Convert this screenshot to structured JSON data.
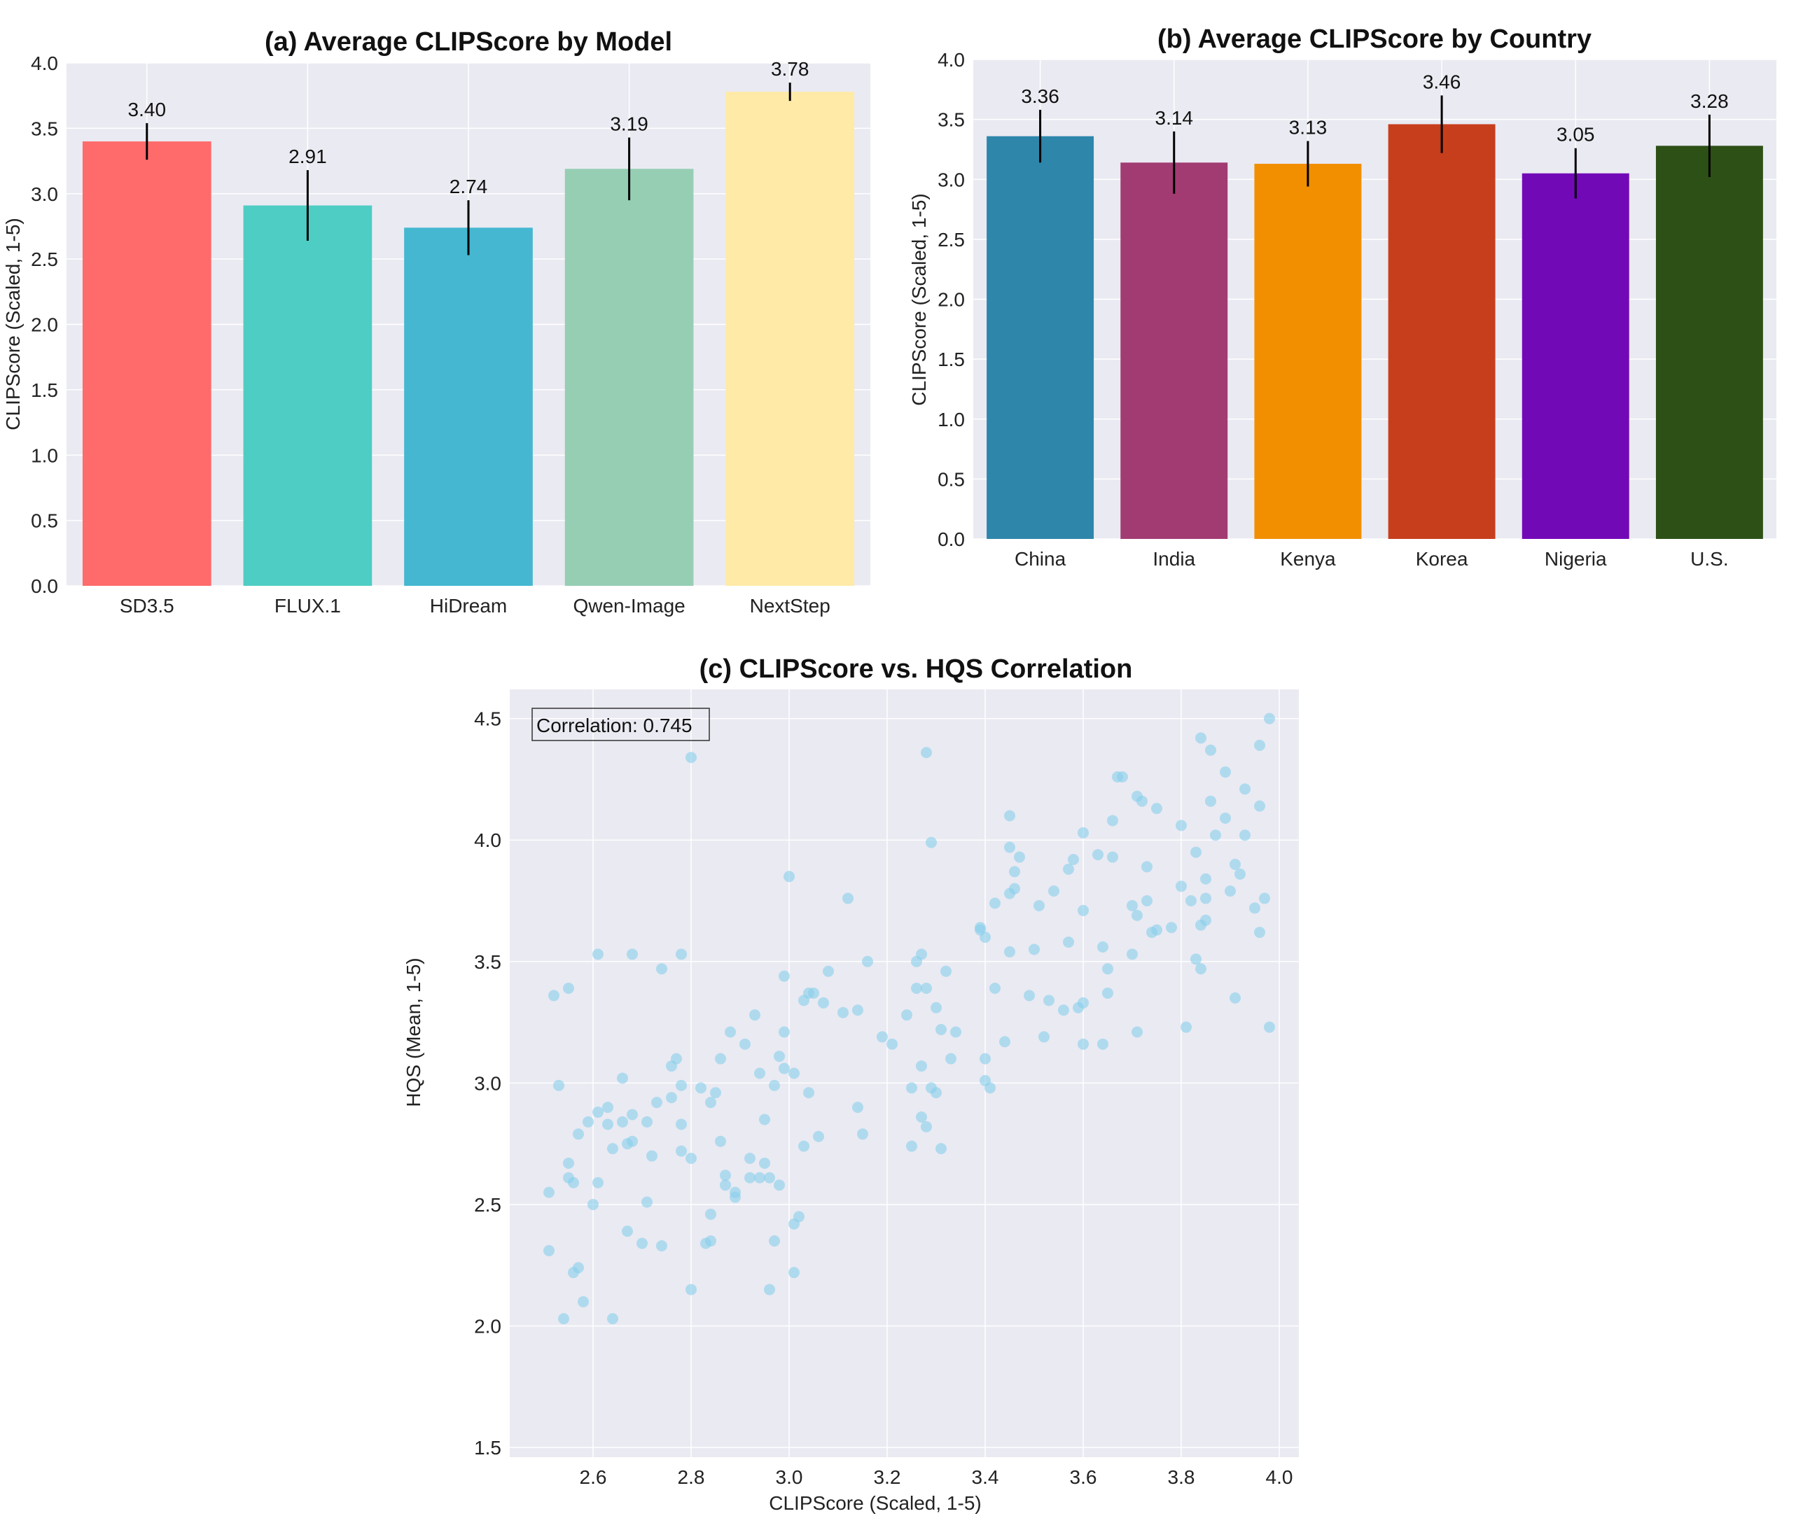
{
  "chart_data": [
    {
      "id": "a",
      "type": "bar",
      "title": "(a) Average CLIPScore by Model",
      "xlabel": "",
      "ylabel": "CLIPScore (Scaled, 1-5)",
      "ylim": [
        0,
        4.0
      ],
      "yticks": [
        "0.0",
        "0.5",
        "1.0",
        "1.5",
        "2.0",
        "2.5",
        "3.0",
        "3.5",
        "4.0"
      ],
      "categories": [
        "SD3.5",
        "FLUX.1",
        "HiDream",
        "Qwen-Image",
        "NextStep"
      ],
      "values": [
        3.4,
        2.91,
        2.74,
        3.19,
        3.78
      ],
      "value_labels": [
        "3.40",
        "2.91",
        "2.74",
        "3.19",
        "3.78"
      ],
      "errors": [
        0.14,
        0.27,
        0.21,
        0.24,
        0.07
      ],
      "colors": [
        "#ff6b6b",
        "#4ecdc4",
        "#45b7d1",
        "#96ceb4",
        "#ffeaa7"
      ],
      "grid": true
    },
    {
      "id": "b",
      "type": "bar",
      "title": "(b) Average CLIPScore by Country",
      "xlabel": "",
      "ylabel": "CLIPScore (Scaled, 1-5)",
      "ylim": [
        0,
        4.0
      ],
      "yticks": [
        "0.0",
        "0.5",
        "1.0",
        "1.5",
        "2.0",
        "2.5",
        "3.0",
        "3.5",
        "4.0"
      ],
      "categories": [
        "China",
        "India",
        "Kenya",
        "Korea",
        "Nigeria",
        "U.S."
      ],
      "values": [
        3.36,
        3.14,
        3.13,
        3.46,
        3.05,
        3.28
      ],
      "value_labels": [
        "3.36",
        "3.14",
        "3.13",
        "3.46",
        "3.05",
        "3.28"
      ],
      "errors": [
        0.22,
        0.26,
        0.19,
        0.24,
        0.21,
        0.26
      ],
      "colors": [
        "#2e86ab",
        "#a23b72",
        "#f18f01",
        "#c73e1d",
        "#7209b7",
        "#2d5016"
      ],
      "grid": true
    },
    {
      "id": "c",
      "type": "scatter",
      "title": "(c) CLIPScore vs. HQS Correlation",
      "xlabel": "CLIPScore (Scaled, 1-5)",
      "ylabel": "HQS (Mean, 1-5)",
      "xlim": [
        2.43,
        4.04
      ],
      "ylim": [
        1.46,
        4.62
      ],
      "xticks": [
        "2.6",
        "2.8",
        "3.0",
        "3.2",
        "3.4",
        "3.6",
        "3.8",
        "4.0"
      ],
      "yticks": [
        "1.5",
        "2.0",
        "2.5",
        "3.0",
        "3.5",
        "4.0",
        "4.5"
      ],
      "annotation": "Correlation: 0.745",
      "point_color": "#87ceeb",
      "grid": true,
      "points": [
        [
          2.51,
          2.55
        ],
        [
          2.51,
          2.31
        ],
        [
          2.52,
          3.36
        ],
        [
          2.53,
          2.99
        ],
        [
          2.54,
          2.03
        ],
        [
          2.55,
          3.39
        ],
        [
          2.55,
          2.61
        ],
        [
          2.55,
          2.67
        ],
        [
          2.56,
          2.59
        ],
        [
          2.56,
          2.22
        ],
        [
          2.57,
          2.79
        ],
        [
          2.57,
          2.24
        ],
        [
          2.58,
          2.1
        ],
        [
          2.59,
          2.84
        ],
        [
          2.6,
          2.5
        ],
        [
          2.61,
          2.88
        ],
        [
          2.61,
          2.59
        ],
        [
          2.61,
          3.53
        ],
        [
          2.63,
          2.83
        ],
        [
          2.63,
          2.9
        ],
        [
          2.64,
          2.73
        ],
        [
          2.64,
          2.03
        ],
        [
          2.66,
          3.02
        ],
        [
          2.66,
          2.84
        ],
        [
          2.67,
          2.39
        ],
        [
          2.67,
          2.75
        ],
        [
          2.68,
          3.53
        ],
        [
          2.68,
          2.76
        ],
        [
          2.68,
          2.87
        ],
        [
          2.7,
          2.34
        ],
        [
          2.71,
          2.84
        ],
        [
          2.71,
          2.51
        ],
        [
          2.72,
          2.7
        ],
        [
          2.73,
          2.92
        ],
        [
          2.74,
          3.47
        ],
        [
          2.74,
          2.33
        ],
        [
          2.76,
          2.94
        ],
        [
          2.76,
          3.07
        ],
        [
          2.77,
          3.1
        ],
        [
          2.78,
          2.83
        ],
        [
          2.78,
          3.53
        ],
        [
          2.78,
          2.99
        ],
        [
          2.78,
          2.72
        ],
        [
          2.8,
          4.34
        ],
        [
          2.8,
          2.69
        ],
        [
          2.8,
          2.15
        ],
        [
          2.82,
          2.98
        ],
        [
          2.83,
          2.34
        ],
        [
          2.84,
          2.35
        ],
        [
          2.84,
          2.92
        ],
        [
          2.84,
          2.46
        ],
        [
          2.85,
          2.96
        ],
        [
          2.86,
          2.76
        ],
        [
          2.86,
          3.1
        ],
        [
          2.87,
          2.62
        ],
        [
          2.87,
          2.58
        ],
        [
          2.88,
          3.21
        ],
        [
          2.89,
          2.55
        ],
        [
          2.89,
          2.53
        ],
        [
          2.91,
          3.16
        ],
        [
          2.92,
          2.69
        ],
        [
          2.92,
          2.61
        ],
        [
          2.93,
          3.28
        ],
        [
          2.94,
          2.61
        ],
        [
          2.94,
          3.04
        ],
        [
          2.95,
          2.67
        ],
        [
          2.95,
          2.85
        ],
        [
          2.96,
          2.61
        ],
        [
          2.96,
          2.15
        ],
        [
          2.97,
          2.99
        ],
        [
          2.97,
          2.35
        ],
        [
          2.98,
          2.58
        ],
        [
          2.98,
          3.11
        ],
        [
          2.99,
          3.44
        ],
        [
          2.99,
          3.21
        ],
        [
          2.99,
          3.06
        ],
        [
          3.0,
          3.85
        ],
        [
          3.01,
          2.22
        ],
        [
          3.01,
          3.04
        ],
        [
          3.01,
          2.42
        ],
        [
          3.02,
          2.45
        ],
        [
          3.03,
          3.34
        ],
        [
          3.03,
          2.74
        ],
        [
          3.04,
          2.96
        ],
        [
          3.04,
          3.37
        ],
        [
          3.05,
          3.37
        ],
        [
          3.06,
          2.78
        ],
        [
          3.07,
          3.33
        ],
        [
          3.08,
          3.46
        ],
        [
          3.11,
          3.29
        ],
        [
          3.12,
          3.76
        ],
        [
          3.14,
          2.9
        ],
        [
          3.14,
          3.3
        ],
        [
          3.15,
          2.79
        ],
        [
          3.16,
          3.5
        ],
        [
          3.19,
          3.19
        ],
        [
          3.21,
          3.16
        ],
        [
          3.24,
          3.28
        ],
        [
          3.25,
          2.98
        ],
        [
          3.25,
          2.74
        ],
        [
          3.26,
          3.39
        ],
        [
          3.26,
          3.5
        ],
        [
          3.27,
          3.07
        ],
        [
          3.27,
          3.53
        ],
        [
          3.27,
          2.86
        ],
        [
          3.28,
          4.36
        ],
        [
          3.28,
          3.39
        ],
        [
          3.28,
          2.82
        ],
        [
          3.29,
          3.99
        ],
        [
          3.29,
          2.98
        ],
        [
          3.3,
          2.96
        ],
        [
          3.3,
          3.31
        ],
        [
          3.31,
          2.73
        ],
        [
          3.31,
          3.22
        ],
        [
          3.32,
          3.46
        ],
        [
          3.33,
          3.1
        ],
        [
          3.34,
          3.21
        ],
        [
          3.39,
          3.63
        ],
        [
          3.39,
          3.64
        ],
        [
          3.4,
          3.6
        ],
        [
          3.4,
          3.1
        ],
        [
          3.4,
          3.01
        ],
        [
          3.41,
          2.98
        ],
        [
          3.42,
          3.74
        ],
        [
          3.42,
          3.39
        ],
        [
          3.44,
          3.17
        ],
        [
          3.45,
          3.54
        ],
        [
          3.45,
          3.97
        ],
        [
          3.45,
          3.78
        ],
        [
          3.46,
          3.87
        ],
        [
          3.46,
          3.8
        ],
        [
          3.45,
          4.1
        ],
        [
          3.47,
          3.93
        ],
        [
          3.49,
          3.36
        ],
        [
          3.5,
          3.55
        ],
        [
          3.51,
          3.73
        ],
        [
          3.52,
          3.19
        ],
        [
          3.53,
          3.34
        ],
        [
          3.54,
          3.79
        ],
        [
          3.56,
          3.3
        ],
        [
          3.57,
          3.58
        ],
        [
          3.57,
          3.88
        ],
        [
          3.58,
          3.92
        ],
        [
          3.59,
          3.31
        ],
        [
          3.6,
          3.33
        ],
        [
          3.6,
          4.03
        ],
        [
          3.6,
          3.71
        ],
        [
          3.6,
          3.16
        ],
        [
          3.63,
          3.94
        ],
        [
          3.64,
          3.16
        ],
        [
          3.64,
          3.56
        ],
        [
          3.65,
          3.47
        ],
        [
          3.65,
          3.37
        ],
        [
          3.66,
          3.93
        ],
        [
          3.66,
          4.08
        ],
        [
          3.67,
          4.26
        ],
        [
          3.68,
          4.26
        ],
        [
          3.7,
          3.73
        ],
        [
          3.7,
          3.53
        ],
        [
          3.71,
          4.18
        ],
        [
          3.71,
          3.69
        ],
        [
          3.71,
          3.21
        ],
        [
          3.72,
          4.16
        ],
        [
          3.73,
          3.89
        ],
        [
          3.73,
          3.75
        ],
        [
          3.74,
          3.62
        ],
        [
          3.75,
          4.13
        ],
        [
          3.75,
          3.63
        ],
        [
          3.78,
          3.64
        ],
        [
          3.8,
          4.06
        ],
        [
          3.8,
          3.81
        ],
        [
          3.81,
          3.23
        ],
        [
          3.82,
          3.75
        ],
        [
          3.83,
          3.95
        ],
        [
          3.83,
          3.51
        ],
        [
          3.84,
          4.42
        ],
        [
          3.84,
          3.47
        ],
        [
          3.84,
          3.65
        ],
        [
          3.85,
          3.84
        ],
        [
          3.85,
          3.76
        ],
        [
          3.85,
          3.67
        ],
        [
          3.86,
          4.37
        ],
        [
          3.86,
          4.16
        ],
        [
          3.87,
          4.02
        ],
        [
          3.89,
          4.09
        ],
        [
          3.89,
          4.28
        ],
        [
          3.9,
          3.79
        ],
        [
          3.91,
          3.9
        ],
        [
          3.91,
          3.35
        ],
        [
          3.92,
          3.86
        ],
        [
          3.93,
          4.21
        ],
        [
          3.93,
          4.02
        ],
        [
          3.95,
          3.72
        ],
        [
          3.96,
          4.14
        ],
        [
          3.96,
          4.39
        ],
        [
          3.96,
          3.62
        ],
        [
          3.97,
          3.76
        ],
        [
          3.98,
          4.5
        ],
        [
          3.98,
          3.23
        ]
      ]
    }
  ]
}
